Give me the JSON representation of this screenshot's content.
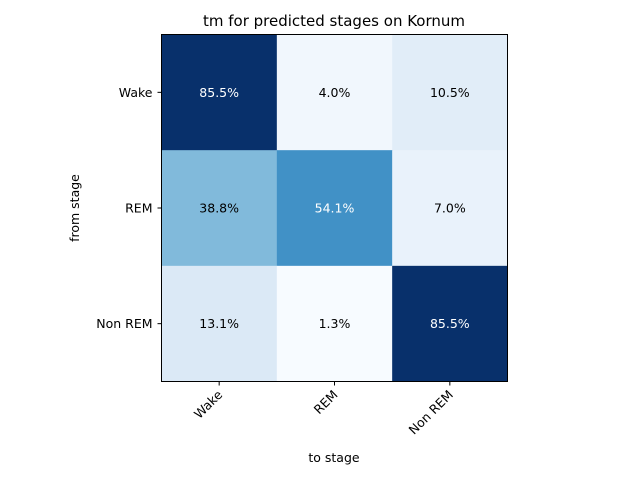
{
  "chart_data": {
    "type": "heatmap",
    "title": "tm for predicted stages on Kornum",
    "xlabel": "to stage",
    "ylabel": "from stage",
    "x_categories": [
      "Wake",
      "REM",
      "Non REM"
    ],
    "y_categories": [
      "Wake",
      "REM",
      "Non REM"
    ],
    "values": [
      [
        85.5,
        4.0,
        10.5
      ],
      [
        38.8,
        54.1,
        7.0
      ],
      [
        13.1,
        1.3,
        85.5
      ]
    ],
    "cell_labels": [
      [
        "85.5%",
        "4.0%",
        "10.5%"
      ],
      [
        "38.8%",
        "54.1%",
        "7.0%"
      ],
      [
        "13.1%",
        "1.3%",
        "85.5%"
      ]
    ],
    "colormap": "Blues",
    "value_range": [
      1.3,
      85.5
    ],
    "grid": false,
    "legend": "none"
  }
}
